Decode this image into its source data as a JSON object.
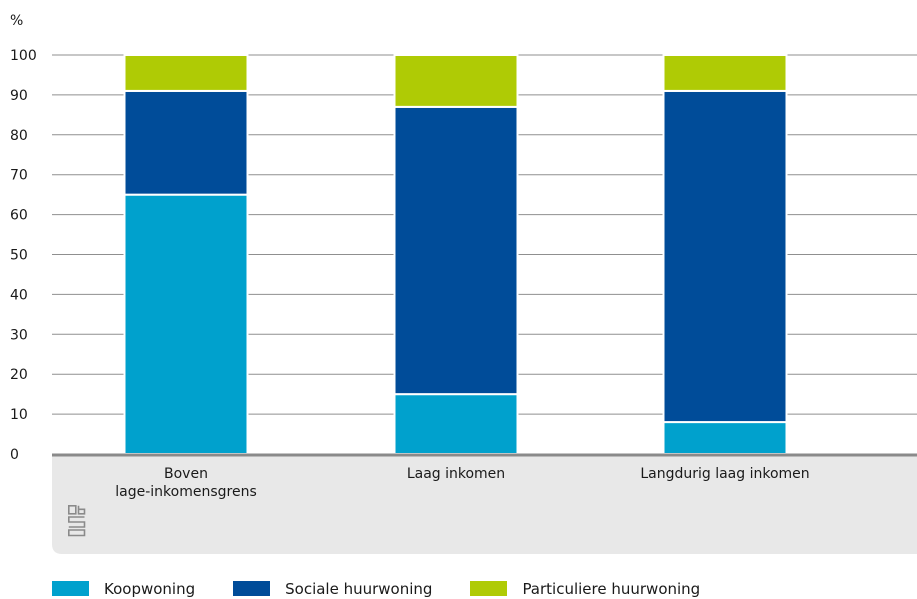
{
  "chart_data": {
    "type": "bar",
    "stacked": true,
    "ylabel": "%",
    "ylim": [
      0,
      100
    ],
    "yticks": [
      0,
      10,
      20,
      30,
      40,
      50,
      60,
      70,
      80,
      90,
      100
    ],
    "grid": true,
    "legend_position": "bottom",
    "categories": [
      [
        "Boven",
        "lage-inkomensgrens"
      ],
      [
        "Laag inkomen"
      ],
      [
        "Langdurig laag inkomen"
      ]
    ],
    "series": [
      {
        "name": "Koopwoning",
        "color": "#00a1cd",
        "values": [
          65,
          15,
          8
        ]
      },
      {
        "name": "Sociale huurwoning",
        "color": "#004c99",
        "values": [
          26,
          72,
          83
        ]
      },
      {
        "name": "Particuliere huurwoning",
        "color": "#afcb05",
        "values": [
          9,
          13,
          9
        ]
      }
    ]
  },
  "logo": "cbs"
}
